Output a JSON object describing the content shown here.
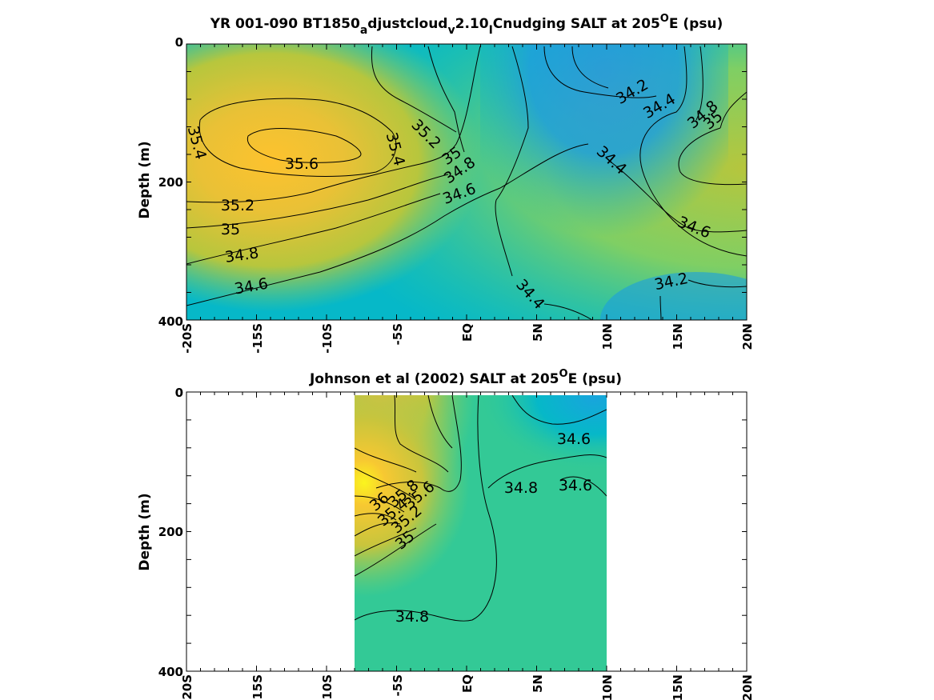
{
  "chart_data": [
    {
      "type": "contour",
      "title_main": "YR 001-090 BT1850",
      "title_sub1": "a",
      "title_mid1": "djustcloud",
      "title_sub2": "v",
      "title_mid2": "2.10",
      "title_sub3": "I",
      "title_mid3": "Cnudging SALT at 205",
      "title_sup": "O",
      "title_end": "E (psu)",
      "ylabel": "Depth (m)",
      "xlabel": "",
      "x_ticks": [
        "-20S",
        "-15S",
        "-10S",
        "-5S",
        "EQ",
        "5N",
        "10N",
        "15N",
        "20N"
      ],
      "y_ticks": [
        "0",
        "200",
        "400"
      ],
      "xlim": [
        -20,
        20
      ],
      "ylim": [
        0,
        400
      ],
      "contour_labels": [
        "35.4",
        "35.6",
        "35.4",
        "35.2",
        "35",
        "34.8",
        "34.6",
        "35.2",
        "35",
        "34.8",
        "34.6",
        "34.4",
        "34.2",
        "34.4",
        "34.8",
        "35",
        "34.4",
        "34.6",
        "34.2"
      ],
      "colormap": [
        "#1f8fe0",
        "#06b8c8",
        "#2ec99a",
        "#7fcf64",
        "#c8c53a",
        "#f5c032",
        "#f7f51a"
      ]
    },
    {
      "type": "contour",
      "title_main": "Johnson et al (2002) SALT at 205",
      "title_sup": "O",
      "title_end": "E (psu)",
      "ylabel": "Depth (m)",
      "xlabel": "",
      "x_ticks": [
        "-20S",
        "-15S",
        "-10S",
        "-5S",
        "EQ",
        "5N",
        "10N",
        "15N",
        "20N"
      ],
      "y_ticks": [
        "0",
        "200",
        "400"
      ],
      "xlim": [
        -20,
        20
      ],
      "ylim": [
        0,
        400
      ],
      "data_xrange": [
        -8,
        10
      ],
      "contour_labels": [
        "34.6",
        "34.8",
        "34.6",
        "36",
        "35.8",
        "35.6",
        "35.4",
        "35.2",
        "35",
        "34.8"
      ],
      "colormap": [
        "#1f8fe0",
        "#06b8c8",
        "#2ec99a",
        "#7fcf64",
        "#c8c53a",
        "#f5c032",
        "#f7f51a"
      ]
    }
  ]
}
